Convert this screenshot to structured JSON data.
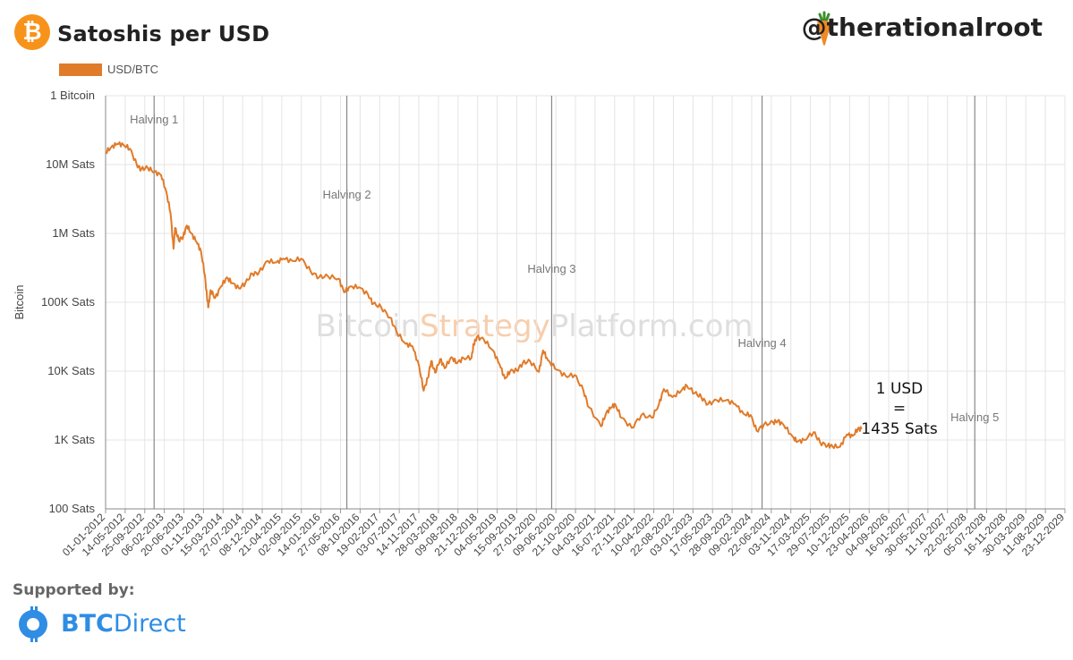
{
  "header": {
    "title": "Satoshis per USD",
    "handle": "@therationalroot",
    "btc_glyph": "₿"
  },
  "footer": {
    "supported_label": "Supported by:",
    "sponsor_bold": "BTC",
    "sponsor_light": "Direct"
  },
  "colors": {
    "series": "#e07b2a",
    "bitcoin_orange": "#f7931a",
    "brand_blue": "#2f8de4",
    "grid": "#e4e4e4",
    "halving_line": "#888888"
  },
  "chart_data": {
    "type": "line",
    "ylabel": "Bitcoin",
    "yscale": "log",
    "ylim": [
      100,
      100000000
    ],
    "yticks": [
      {
        "value": 100000000,
        "label": "1 Bitcoin"
      },
      {
        "value": 10000000,
        "label": "10M Sats"
      },
      {
        "value": 1000000,
        "label": "1M Sats"
      },
      {
        "value": 100000,
        "label": "100K Sats"
      },
      {
        "value": 10000,
        "label": "10K Sats"
      },
      {
        "value": 1000,
        "label": "1K Sats"
      },
      {
        "value": 100,
        "label": "100 Sats"
      }
    ],
    "xlim": [
      "2012-01-01",
      "2029-12-23"
    ],
    "xticks": [
      "01-01-2012",
      "14-05-2012",
      "25-09-2012",
      "06-02-2013",
      "20-06-2013",
      "01-11-2013",
      "15-03-2014",
      "27-07-2014",
      "08-12-2014",
      "21-04-2015",
      "02-09-2015",
      "14-01-2016",
      "27-05-2016",
      "08-10-2016",
      "19-02-2017",
      "03-07-2017",
      "14-11-2017",
      "28-03-2018",
      "09-08-2018",
      "21-12-2018",
      "04-05-2019",
      "15-09-2019",
      "27-01-2020",
      "09-06-2020",
      "21-10-2020",
      "04-03-2021",
      "16-07-2021",
      "27-11-2021",
      "10-04-2022",
      "22-08-2022",
      "03-01-2023",
      "17-05-2023",
      "28-09-2023",
      "09-02-2024",
      "22-06-2024",
      "03-11-2024",
      "17-03-2025",
      "29-07-2025",
      "10-12-2025",
      "23-04-2026",
      "04-09-2026",
      "16-01-2027",
      "30-05-2027",
      "11-10-2027",
      "22-02-2028",
      "05-07-2028",
      "16-11-2028",
      "30-03-2029",
      "11-08-2029",
      "23-12-2029"
    ],
    "legend": {
      "position": "top-left",
      "label": "USD/BTC"
    },
    "series": [
      {
        "name": "USD/BTC",
        "points": [
          [
            "2012-01-01",
            15000000
          ],
          [
            "2012-02-10",
            18000000
          ],
          [
            "2012-03-20",
            20000000
          ],
          [
            "2012-05-01",
            19500000
          ],
          [
            "2012-06-15",
            17000000
          ],
          [
            "2012-08-01",
            10000000
          ],
          [
            "2012-09-01",
            8500000
          ],
          [
            "2012-10-15",
            9000000
          ],
          [
            "2012-12-01",
            7800000
          ],
          [
            "2013-01-15",
            7000000
          ],
          [
            "2013-02-20",
            4000000
          ],
          [
            "2013-03-20",
            2000000
          ],
          [
            "2013-04-10",
            600000
          ],
          [
            "2013-04-20",
            1200000
          ],
          [
            "2013-05-15",
            800000
          ],
          [
            "2013-06-15",
            900000
          ],
          [
            "2013-07-10",
            1300000
          ],
          [
            "2013-08-10",
            1000000
          ],
          [
            "2013-09-15",
            750000
          ],
          [
            "2013-10-15",
            550000
          ],
          [
            "2013-11-10",
            250000
          ],
          [
            "2013-11-25",
            120000
          ],
          [
            "2013-12-05",
            85000
          ],
          [
            "2013-12-20",
            150000
          ],
          [
            "2014-01-20",
            115000
          ],
          [
            "2014-03-01",
            170000
          ],
          [
            "2014-04-10",
            230000
          ],
          [
            "2014-05-15",
            190000
          ],
          [
            "2014-07-01",
            160000
          ],
          [
            "2014-08-15",
            190000
          ],
          [
            "2014-10-01",
            260000
          ],
          [
            "2014-11-15",
            270000
          ],
          [
            "2015-01-15",
            400000
          ],
          [
            "2015-03-15",
            380000
          ],
          [
            "2015-05-01",
            430000
          ],
          [
            "2015-07-01",
            400000
          ],
          [
            "2015-09-01",
            430000
          ],
          [
            "2015-11-05",
            280000
          ],
          [
            "2016-01-01",
            230000
          ],
          [
            "2016-03-01",
            240000
          ],
          [
            "2016-05-15",
            220000
          ],
          [
            "2016-06-20",
            140000
          ],
          [
            "2016-08-01",
            170000
          ],
          [
            "2016-10-01",
            165000
          ],
          [
            "2016-12-01",
            130000
          ],
          [
            "2017-01-05",
            95000
          ],
          [
            "2017-03-01",
            85000
          ],
          [
            "2017-05-01",
            60000
          ],
          [
            "2017-06-15",
            37000
          ],
          [
            "2017-08-15",
            25000
          ],
          [
            "2017-10-01",
            23000
          ],
          [
            "2017-11-15",
            12000
          ],
          [
            "2017-12-17",
            5200
          ],
          [
            "2018-01-15",
            8000
          ],
          [
            "2018-02-06",
            14000
          ],
          [
            "2018-03-05",
            9500
          ],
          [
            "2018-04-10",
            15000
          ],
          [
            "2018-05-10",
            11000
          ],
          [
            "2018-06-25",
            16000
          ],
          [
            "2018-08-01",
            13000
          ],
          [
            "2018-09-15",
            15500
          ],
          [
            "2018-11-10",
            15800
          ],
          [
            "2018-11-25",
            25000
          ],
          [
            "2018-12-15",
            31000
          ],
          [
            "2019-02-01",
            29000
          ],
          [
            "2019-04-05",
            20000
          ],
          [
            "2019-05-20",
            12500
          ],
          [
            "2019-06-26",
            7800
          ],
          [
            "2019-08-01",
            10000
          ],
          [
            "2019-09-15",
            10200
          ],
          [
            "2019-10-25",
            13000
          ],
          [
            "2019-12-15",
            14000
          ],
          [
            "2020-02-14",
            9800
          ],
          [
            "2020-03-13",
            20000
          ],
          [
            "2020-04-15",
            14500
          ],
          [
            "2020-06-15",
            10500
          ],
          [
            "2020-08-15",
            8500
          ],
          [
            "2020-10-15",
            8800
          ],
          [
            "2020-12-15",
            5200
          ],
          [
            "2021-01-20",
            3000
          ],
          [
            "2021-04-14",
            1580
          ],
          [
            "2021-05-20",
            2500
          ],
          [
            "2021-06-25",
            3000
          ],
          [
            "2021-07-20",
            3300
          ],
          [
            "2021-09-01",
            2100
          ],
          [
            "2021-11-10",
            1500
          ],
          [
            "2022-01-15",
            2300
          ],
          [
            "2022-03-28",
            2100
          ],
          [
            "2022-05-15",
            3300
          ],
          [
            "2022-06-18",
            5500
          ],
          [
            "2022-08-15",
            4200
          ],
          [
            "2022-10-15",
            5200
          ],
          [
            "2022-11-21",
            6200
          ],
          [
            "2023-01-15",
            4800
          ],
          [
            "2023-03-01",
            4200
          ],
          [
            "2023-04-15",
            3300
          ],
          [
            "2023-06-15",
            3800
          ],
          [
            "2023-08-20",
            3800
          ],
          [
            "2023-10-20",
            3300
          ],
          [
            "2023-12-15",
            2400
          ],
          [
            "2024-02-01",
            2300
          ],
          [
            "2024-03-14",
            1360
          ],
          [
            "2024-05-01",
            1650
          ],
          [
            "2024-07-05",
            1800
          ],
          [
            "2024-08-05",
            1900
          ],
          [
            "2024-09-15",
            1650
          ],
          [
            "2024-11-15",
            1120
          ],
          [
            "2024-12-17",
            940
          ],
          [
            "2025-02-01",
            1000
          ],
          [
            "2025-04-08",
            1300
          ],
          [
            "2025-05-22",
            920
          ],
          [
            "2025-07-14",
            830
          ],
          [
            "2025-08-14",
            810
          ],
          [
            "2025-10-06",
            800
          ],
          [
            "2025-11-21",
            1200
          ],
          [
            "2026-01-01",
            1150
          ],
          [
            "2026-02-05",
            1450
          ],
          [
            "2026-03-01",
            1435
          ]
        ]
      }
    ],
    "halvings": [
      {
        "label": "Halving 1",
        "date": "2012-11-28"
      },
      {
        "label": "Halving 2",
        "date": "2016-07-09"
      },
      {
        "label": "Halving 3",
        "date": "2020-05-11"
      },
      {
        "label": "Halving 4",
        "date": "2024-04-20"
      },
      {
        "label": "Halving 5",
        "date": "2028-04-15"
      }
    ],
    "annotation": {
      "line1": "1 USD",
      "line2": "=",
      "line3": "1435 Sats",
      "value": 1435
    },
    "watermark": {
      "part1": "Bitcoin",
      "part2": "Strategy",
      "part3": "Platform.com"
    }
  }
}
